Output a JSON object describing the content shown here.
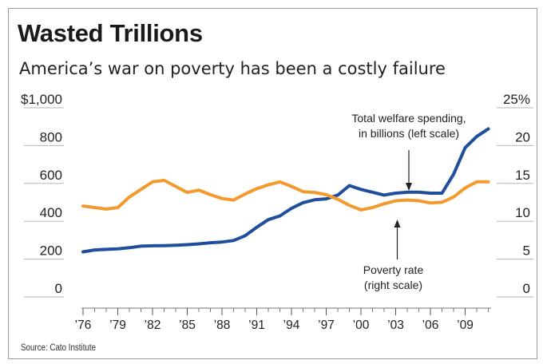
{
  "header": {
    "title": "Wasted Trillions",
    "subtitle": "America’s war on poverty has been a costly failure"
  },
  "source": "Source: Cato Institute",
  "colors": {
    "welfare": "#1f4e9c",
    "poverty": "#f39a2e",
    "grid": "#b5b5b5",
    "text": "#222222"
  },
  "chart_data": {
    "type": "line",
    "title": "Wasted Trillions",
    "subtitle": "America’s war on poverty has been a costly failure",
    "x": [
      1976,
      1977,
      1978,
      1979,
      1980,
      1981,
      1982,
      1983,
      1984,
      1985,
      1986,
      1987,
      1988,
      1989,
      1990,
      1991,
      1992,
      1993,
      1994,
      1995,
      1996,
      1997,
      1998,
      1999,
      2000,
      2001,
      2002,
      2003,
      2004,
      2005,
      2006,
      2007,
      2008,
      2009,
      2010,
      2011
    ],
    "x_tick_values": [
      1976,
      1979,
      1982,
      1985,
      1988,
      1991,
      1994,
      1997,
      2000,
      2003,
      2006,
      2009
    ],
    "x_tick_labels": [
      "’76",
      "’79",
      "’82",
      "’85",
      "’88",
      "’91",
      "’94",
      "’97",
      "’00",
      "’03",
      "’06",
      "’09"
    ],
    "left_axis": {
      "ylim": [
        0,
        1000
      ],
      "tick_values": [
        0,
        200,
        400,
        600,
        800,
        1000
      ],
      "tick_labels": [
        "0",
        "200",
        "400",
        "600",
        "800",
        "$1,000"
      ]
    },
    "right_axis": {
      "ylim": [
        0,
        25
      ],
      "tick_values": [
        0,
        5,
        10,
        15,
        20,
        25
      ],
      "tick_labels": [
        "0",
        "5",
        "10",
        "15",
        "20",
        "25%"
      ]
    },
    "series": [
      {
        "name": "Total welfare spending, in billions (left scale)",
        "axis": "left",
        "values": [
          230,
          240,
          243,
          246,
          252,
          260,
          262,
          263,
          265,
          268,
          272,
          278,
          282,
          290,
          315,
          360,
          400,
          420,
          460,
          490,
          505,
          510,
          530,
          580,
          560,
          545,
          530,
          540,
          545,
          545,
          540,
          540,
          640,
          780,
          840,
          880
        ]
      },
      {
        "name": "Poverty rate (right scale)",
        "axis": "right",
        "values": [
          11.8,
          11.6,
          11.4,
          11.6,
          13.0,
          14.0,
          15.0,
          15.2,
          14.4,
          13.6,
          13.9,
          13.3,
          12.8,
          12.6,
          13.4,
          14.1,
          14.6,
          15.0,
          14.4,
          13.7,
          13.6,
          13.3,
          12.7,
          11.9,
          11.3,
          11.6,
          12.1,
          12.5,
          12.6,
          12.5,
          12.2,
          12.3,
          13.0,
          14.2,
          15.0,
          15.0
        ]
      }
    ],
    "annotations": [
      {
        "lines": [
          "Total welfare spending,",
          "in billions (left scale)"
        ],
        "x": 2004,
        "y_axis": "left",
        "y": 540
      },
      {
        "lines": [
          "Poverty rate",
          "(right scale)"
        ],
        "x": 2003,
        "y_axis": "right",
        "y": 12.5
      }
    ],
    "grid": false,
    "legend": "none"
  }
}
